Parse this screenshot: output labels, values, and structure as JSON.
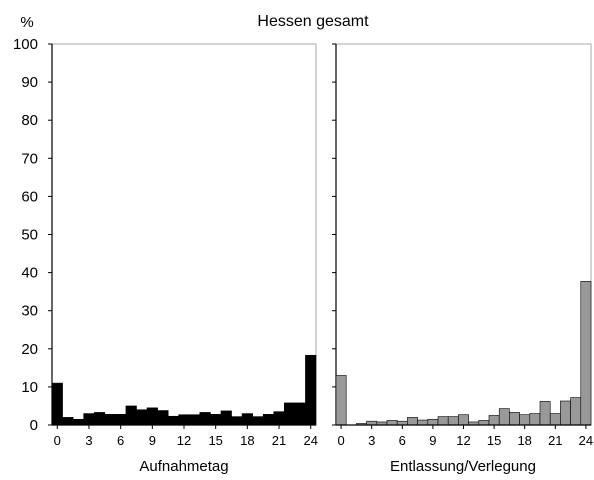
{
  "chart_data": {
    "type": "bar",
    "title": "Hessen gesamt",
    "y_unit": "%",
    "ylim": [
      0,
      100
    ],
    "y_ticks": [
      0,
      10,
      20,
      30,
      40,
      50,
      60,
      70,
      80,
      90,
      100
    ],
    "x_ticks": [
      0,
      3,
      6,
      9,
      12,
      15,
      18,
      21,
      24
    ],
    "grid": false,
    "panels": [
      {
        "xlabel": "Aufnahmetag",
        "bar_color": "#000000",
        "series": [
          {
            "x": [
              0,
              1,
              2,
              3,
              4,
              5,
              6,
              7,
              8,
              9,
              10,
              11,
              12,
              13,
              14,
              15,
              16,
              17,
              18,
              19,
              20,
              21,
              22,
              23,
              24
            ],
            "values": [
              11,
              2,
              1.5,
              3,
              3.3,
              2.8,
              2.8,
              5,
              4,
              4.5,
              3.8,
              2.3,
              2.7,
              2.7,
              3.3,
              2.8,
              3.7,
              2.2,
              3,
              2.2,
              2.8,
              3.5,
              5.8,
              5.8,
              18.3
            ]
          }
        ]
      },
      {
        "xlabel": "Entlassung/Verlegung",
        "bar_color": "#999999",
        "series": [
          {
            "x": [
              0,
              1,
              2,
              3,
              4,
              5,
              6,
              7,
              8,
              9,
              10,
              11,
              12,
              13,
              14,
              15,
              16,
              17,
              18,
              19,
              20,
              21,
              22,
              23,
              24
            ],
            "values": [
              13,
              0,
              0.4,
              1,
              0.8,
              1.2,
              1,
              2,
              1.3,
              1.5,
              2.2,
              2.2,
              2.7,
              0.8,
              1.2,
              2.5,
              4.3,
              3.3,
              2.7,
              3,
              6.2,
              3,
              6.3,
              7.2,
              37.7
            ]
          }
        ]
      }
    ]
  }
}
